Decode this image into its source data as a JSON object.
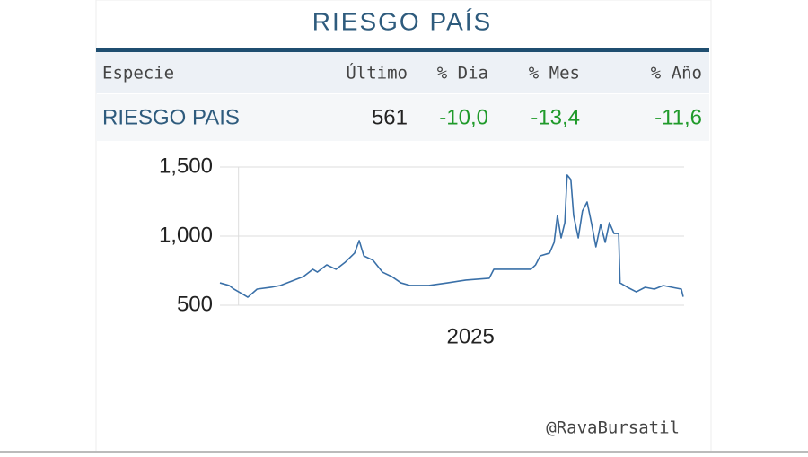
{
  "title": "RIESGO PAÍS",
  "table": {
    "columns": [
      "Especie",
      "Último",
      "% Dia",
      "% Mes",
      "% Año"
    ],
    "rows": [
      [
        "RIESGO PAIS",
        "561",
        "-10,0",
        "-13,4",
        "-11,6"
      ]
    ]
  },
  "chart_data": {
    "type": "line",
    "x": [
      2024.96,
      2024.98,
      2024.99,
      2025.01,
      2025.02,
      2025.04,
      2025.07,
      2025.09,
      2025.12,
      2025.14,
      2025.16,
      2025.17,
      2025.19,
      2025.21,
      2025.23,
      2025.25,
      2025.26,
      2025.27,
      2025.29,
      2025.31,
      2025.33,
      2025.35,
      2025.37,
      2025.41,
      2025.45,
      2025.49,
      2025.54,
      2025.55,
      2025.59,
      2025.63,
      2025.64,
      2025.65,
      2025.67,
      2025.68,
      2025.687,
      2025.695,
      2025.703,
      2025.708,
      2025.716,
      2025.722,
      2025.732,
      2025.741,
      2025.751,
      2025.761,
      2025.77,
      2025.78,
      2025.79,
      2025.799,
      2025.809,
      2025.819,
      2025.822,
      2025.838,
      2025.857,
      2025.876,
      2025.896,
      2025.915,
      2025.934,
      2025.954,
      2025.958
    ],
    "series": [
      {
        "name": "RIESGO PAIS",
        "color": "#3a70a8",
        "values": [
          662,
          643,
          617,
          578,
          558,
          617,
          630,
          643,
          682,
          708,
          760,
          740,
          792,
          760,
          812,
          877,
          968,
          857,
          825,
          740,
          708,
          662,
          643,
          643,
          662,
          682,
          695,
          760,
          760,
          760,
          792,
          857,
          877,
          955,
          1149,
          987,
          1097,
          1442,
          1409,
          1149,
          987,
          1182,
          1247,
          1084,
          922,
          1084,
          955,
          1097,
          1019,
          1019,
          662,
          630,
          597,
          630,
          617,
          643,
          630,
          617,
          561
        ]
      }
    ],
    "xlim": [
      2024.96,
      2025.96
    ],
    "xticks": [
      2025
    ],
    "ylim": [
      500,
      1500
    ],
    "yticks": [
      500,
      {
        "value": 1000,
        "label": "1,000"
      },
      {
        "value": 1500,
        "label": "1,500"
      }
    ],
    "grid": true
  },
  "footer": "@RavaBursatil"
}
